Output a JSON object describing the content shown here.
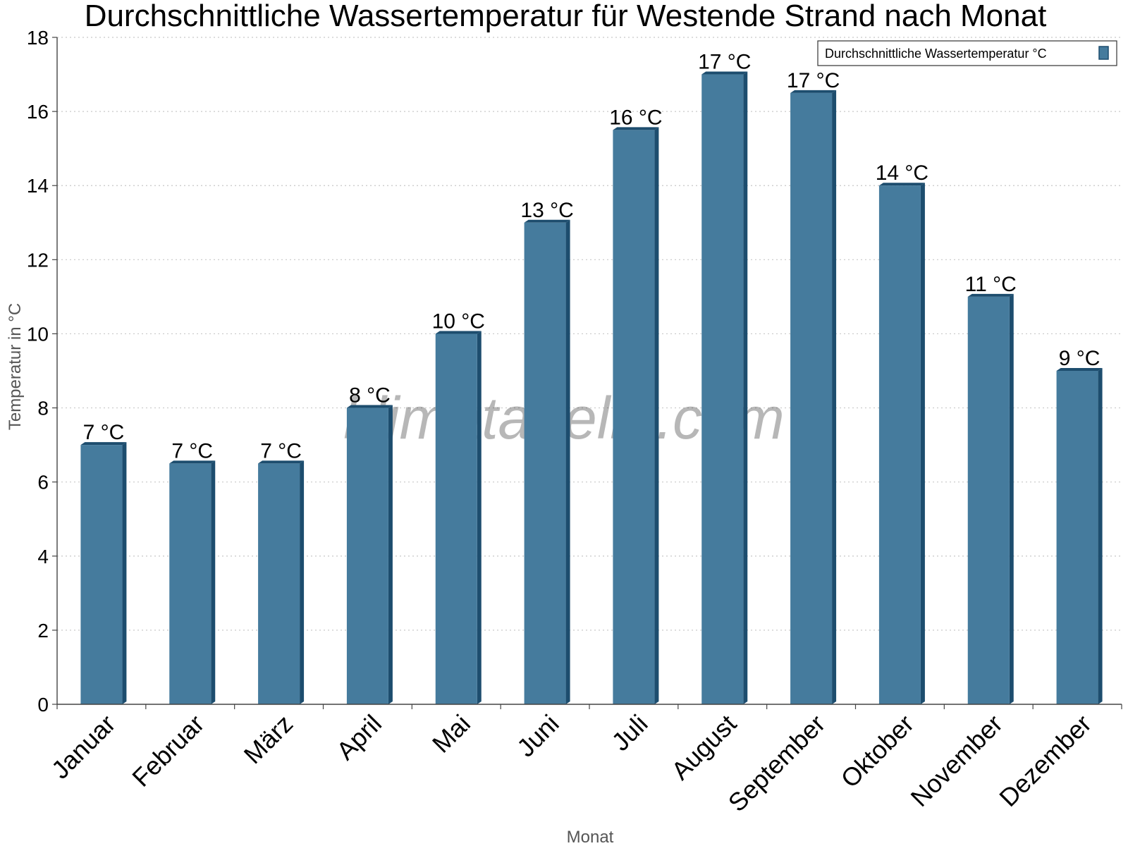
{
  "chart_data": {
    "type": "bar",
    "title": "Durchschnittliche Wassertemperatur für Westende Strand nach Monat",
    "xlabel": "Monat",
    "ylabel": "Temperatur in °C",
    "categories": [
      "Januar",
      "Februar",
      "März",
      "April",
      "Mai",
      "Juni",
      "Juli",
      "August",
      "September",
      "Oktober",
      "November",
      "Dezember"
    ],
    "series": [
      {
        "name": "Durchschnittliche Wassertemperatur °C",
        "values": [
          7.0,
          6.5,
          6.5,
          8.0,
          10.0,
          13.0,
          15.5,
          17.0,
          16.5,
          14.0,
          11.0,
          9.0
        ],
        "data_labels": [
          "7 °C",
          "7 °C",
          "7 °C",
          "8 °C",
          "10 °C",
          "13 °C",
          "16 °C",
          "17 °C",
          "17 °C",
          "14 °C",
          "11 °C",
          "9 °C"
        ],
        "color": "#457b9d",
        "edge_color": "#1d4d6e"
      }
    ],
    "ylim": [
      0,
      18
    ],
    "yticks": [
      0,
      2,
      4,
      6,
      8,
      10,
      12,
      14,
      16,
      18
    ],
    "grid": "horizontal-dotted",
    "legend_position": "top-right",
    "watermark": "klimatabelle.com"
  }
}
